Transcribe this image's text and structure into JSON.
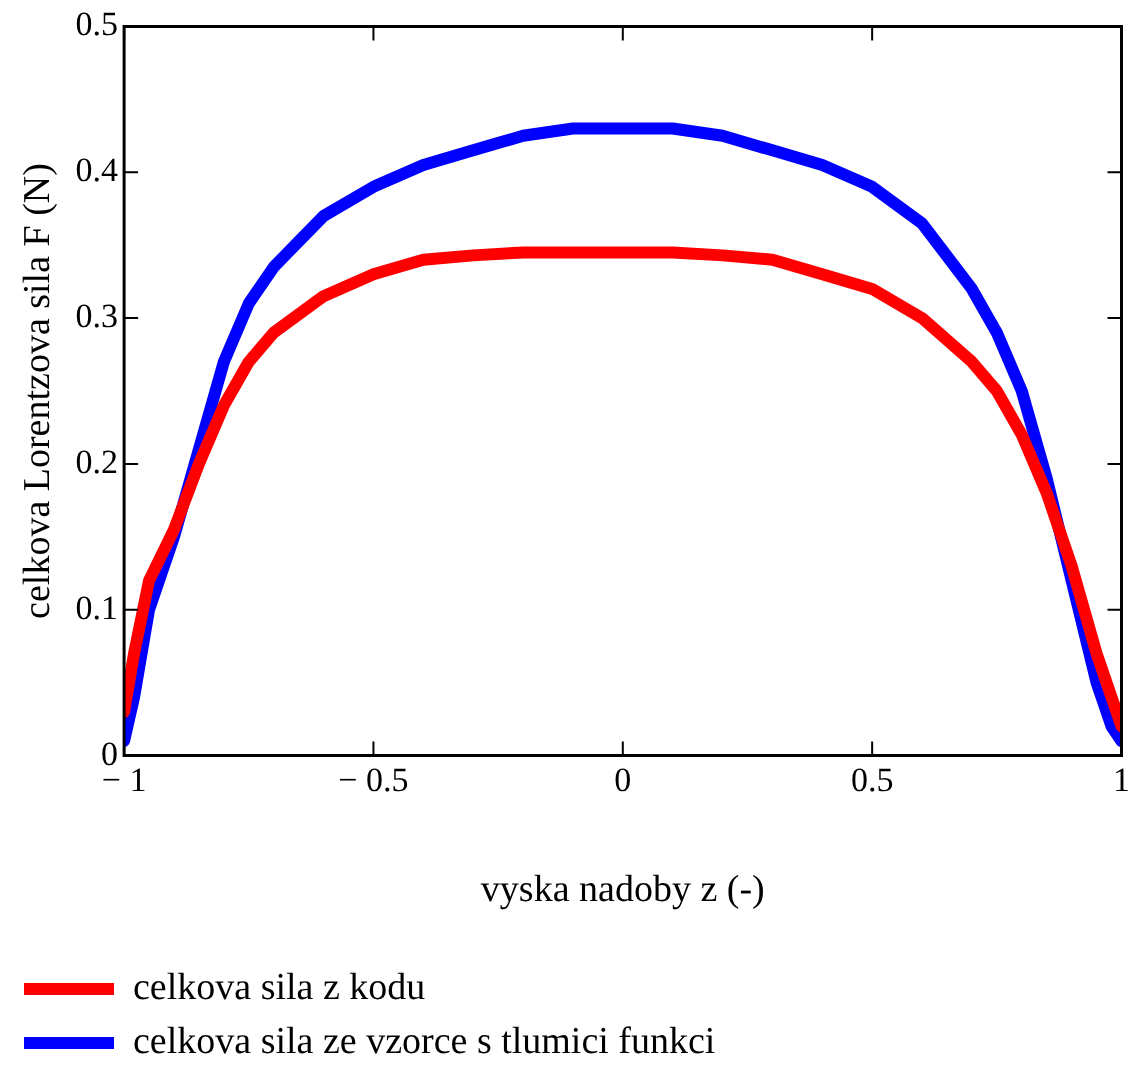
{
  "chart_data": {
    "type": "line",
    "xlabel": "vyska nadoby z (-)",
    "ylabel": "celkova Lorentzova sila F (N)",
    "x": [
      -1,
      -0.98,
      -0.95,
      -0.9,
      -0.85,
      -0.8,
      -0.75,
      -0.7,
      -0.6,
      -0.5,
      -0.4,
      -0.3,
      -0.2,
      -0.1,
      0,
      0.1,
      0.2,
      0.3,
      0.4,
      0.5,
      0.6,
      0.7,
      0.75,
      0.8,
      0.85,
      0.9,
      0.95,
      0.98,
      1
    ],
    "series": [
      {
        "name": "celkova sila z kodu",
        "color": "#ff0000",
        "values": [
          0.03,
          0.07,
          0.12,
          0.155,
          0.2,
          0.24,
          0.27,
          0.29,
          0.315,
          0.33,
          0.34,
          0.343,
          0.345,
          0.345,
          0.345,
          0.345,
          0.343,
          0.34,
          0.33,
          0.32,
          0.3,
          0.27,
          0.25,
          0.22,
          0.18,
          0.13,
          0.07,
          0.04,
          0.02
        ]
      },
      {
        "name": "celkova sila ze vzorce s tlumici funkci",
        "color": "#0000ff",
        "values": [
          0.01,
          0.04,
          0.1,
          0.15,
          0.21,
          0.27,
          0.31,
          0.335,
          0.37,
          0.39,
          0.405,
          0.415,
          0.425,
          0.43,
          0.43,
          0.43,
          0.425,
          0.415,
          0.405,
          0.39,
          0.365,
          0.32,
          0.29,
          0.25,
          0.19,
          0.12,
          0.05,
          0.02,
          0.01
        ]
      }
    ],
    "xlim": [
      -1,
      1
    ],
    "xticks": [
      {
        "value": -1,
        "label": "− 1"
      },
      {
        "value": -0.5,
        "label": "− 0.5"
      },
      0,
      0.5,
      1
    ],
    "ylim": [
      0,
      0.5
    ],
    "yticks": [
      0,
      0.1,
      0.2,
      0.3,
      0.4,
      0.5
    ],
    "grid": false,
    "legend": "bottom",
    "marker": "none",
    "line_style": "solid"
  }
}
